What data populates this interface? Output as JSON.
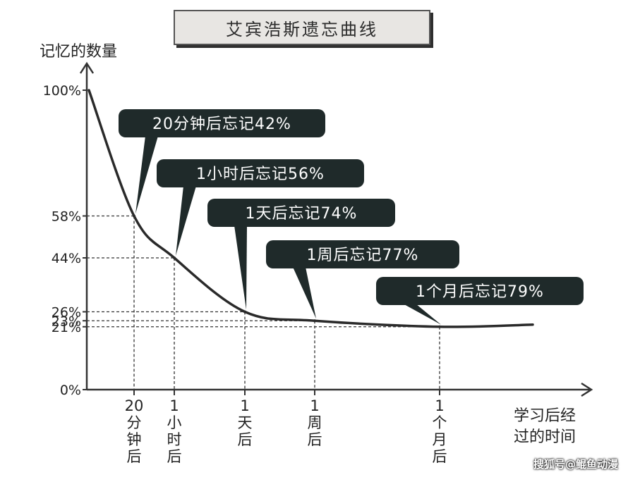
{
  "title": "艾宾浩斯遗忘曲线",
  "watermark": "搜狐号@鲲鱼动漫",
  "chart_data": {
    "type": "line",
    "title": "艾宾浩斯遗忘曲线",
    "ylabel": "记忆的数量",
    "xlabel": [
      "学习后经",
      "过的时间"
    ],
    "yticks": [
      "100%",
      "58%",
      "44%",
      "26%",
      "23%",
      "21%",
      "0%"
    ],
    "ytick_values": [
      100,
      58,
      44,
      26,
      23,
      21,
      0
    ],
    "points": [
      {
        "label": [
          "20",
          "分",
          "钟",
          "后"
        ],
        "value": 58,
        "callout": "20分钟后忘记42%"
      },
      {
        "label": [
          "1",
          "小",
          "时",
          "后"
        ],
        "value": 44,
        "callout": "1小时后忘记56%"
      },
      {
        "label": [
          "1",
          "天",
          "后"
        ],
        "value": 26,
        "callout": "1天后忘记74%"
      },
      {
        "label": [
          "1",
          "周",
          "后"
        ],
        "value": 23,
        "callout": "1周后忘记77%"
      },
      {
        "label": [
          "1",
          "个",
          "月",
          "后"
        ],
        "value": 21,
        "callout": "1个月后忘记79%"
      }
    ],
    "ylim": [
      0,
      100
    ],
    "grid": false,
    "colors": {
      "curve": "#2a2a2a",
      "callout_bg": "#1f2a2a",
      "callout_text": "#ffffff",
      "axis": "#333333"
    }
  }
}
